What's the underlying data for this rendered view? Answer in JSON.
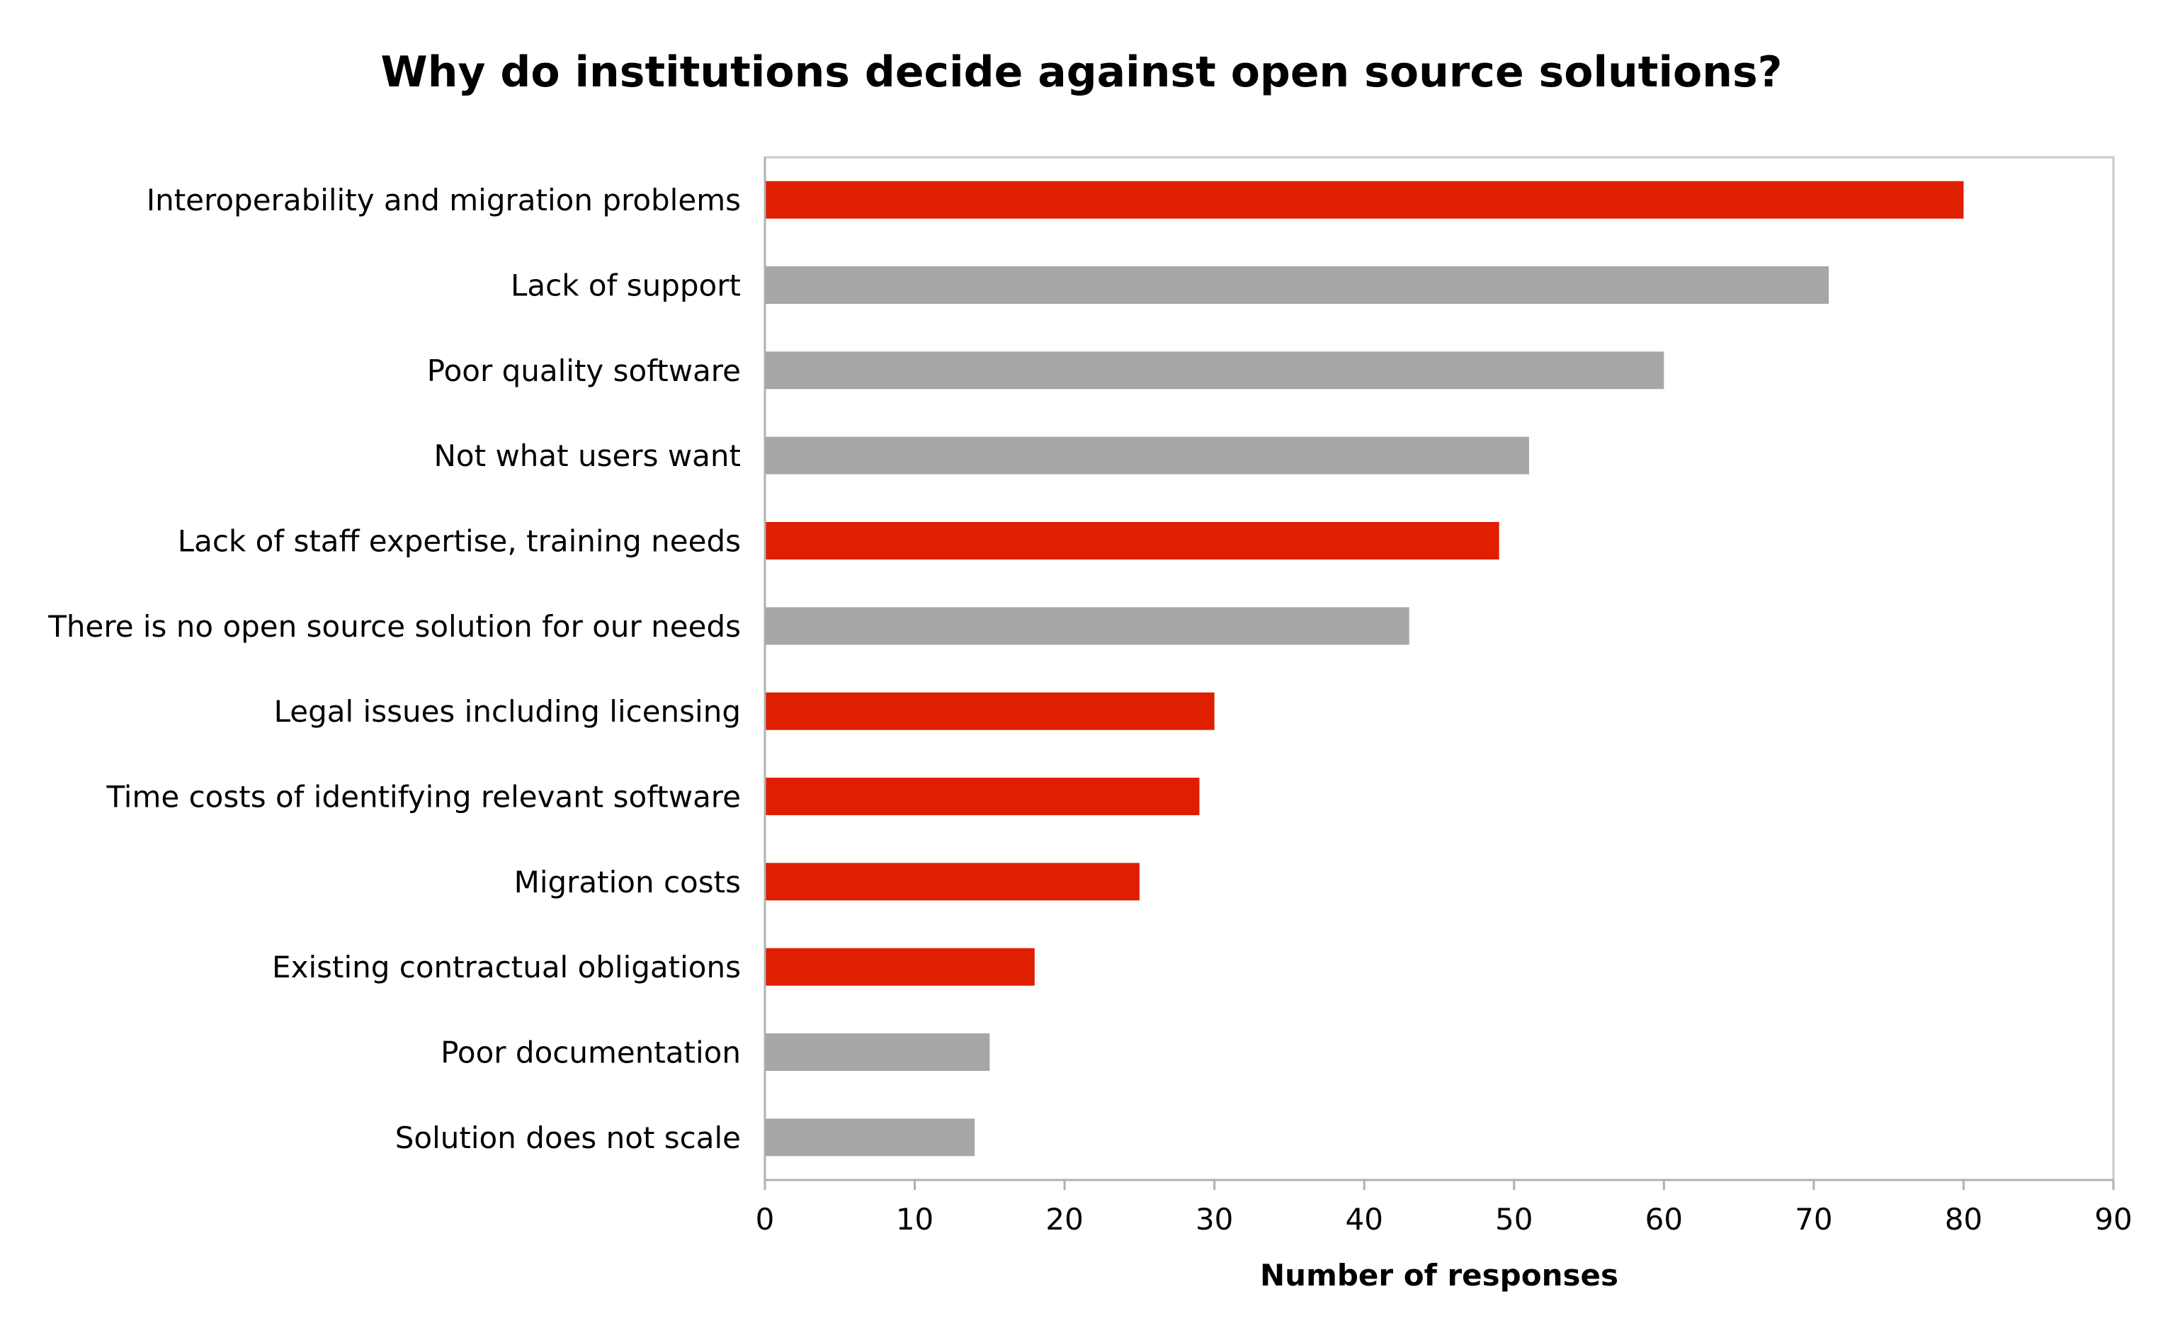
{
  "chart_data": {
    "type": "bar",
    "orientation": "horizontal",
    "title": "Why do institutions decide against open source solutions?",
    "xlabel": "Number of responses",
    "ylabel": "",
    "xlim": [
      0,
      90
    ],
    "xticks": [
      0,
      10,
      20,
      30,
      40,
      50,
      60,
      70,
      80,
      90
    ],
    "grid": false,
    "legend": "none",
    "categories": [
      "Interoperability and migration problems",
      "Lack of support",
      "Poor quality software",
      "Not what users want",
      "Lack of staff expertise, training needs",
      "There is no open source solution for our needs",
      "Legal issues including licensing",
      "Time costs of identifying relevant software",
      "Migration costs",
      "Existing contractual obligations",
      "Poor documentation",
      "Solution does not scale"
    ],
    "values": [
      80,
      71,
      60,
      51,
      49,
      43,
      30,
      29,
      25,
      18,
      15,
      14
    ],
    "highlight": [
      true,
      false,
      false,
      false,
      true,
      false,
      true,
      true,
      true,
      true,
      false,
      false
    ],
    "colors": {
      "highlight": "#e01e00",
      "normal": "#a6a6a6",
      "axis": "#b0b0b0",
      "frame": "#c8c8c8"
    }
  }
}
